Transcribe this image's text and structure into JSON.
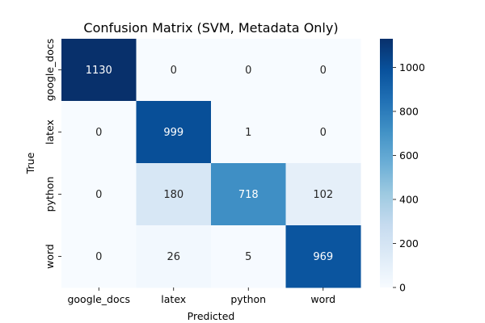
{
  "chart_data": {
    "type": "heatmap",
    "title": "Confusion Matrix (SVM, Metadata Only)",
    "xlabel": "Predicted",
    "ylabel": "True",
    "x_categories": [
      "google_docs",
      "latex",
      "python",
      "word"
    ],
    "y_categories": [
      "google_docs",
      "latex",
      "python",
      "word"
    ],
    "values": [
      [
        1130,
        0,
        0,
        0
      ],
      [
        0,
        999,
        1,
        0
      ],
      [
        0,
        180,
        718,
        102
      ],
      [
        0,
        26,
        5,
        969
      ]
    ],
    "colorbar": {
      "min": 0,
      "max": 1130,
      "ticks": [
        0,
        200,
        400,
        600,
        800,
        1000
      ],
      "colormap": "Blues"
    }
  }
}
